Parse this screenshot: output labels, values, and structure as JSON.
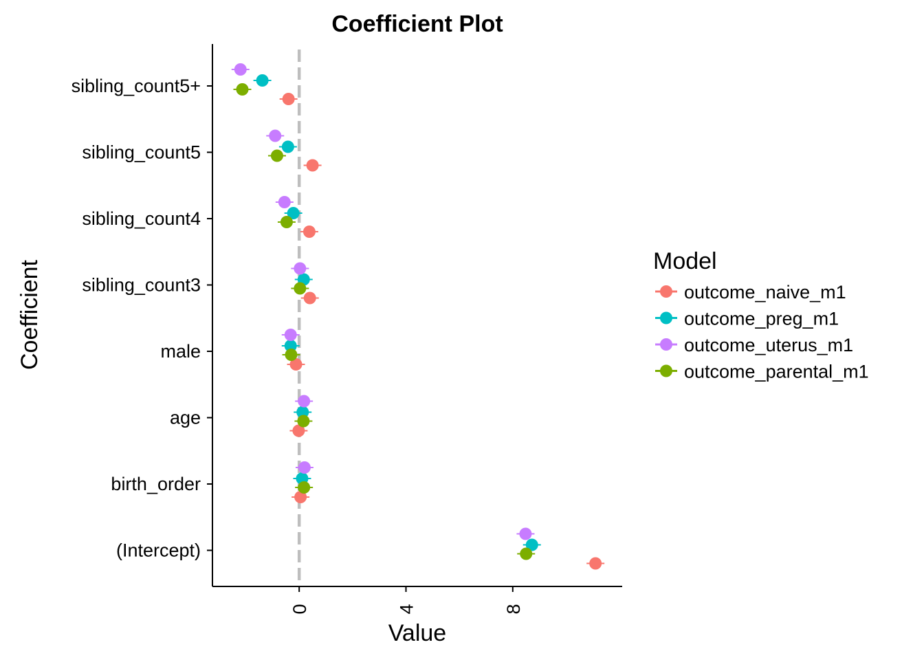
{
  "chart_data": {
    "type": "scatter",
    "title": "Coefficient Plot",
    "xlabel": "Value",
    "ylabel": "Coefficient",
    "xlim": [
      -3.25,
      12.1
    ],
    "x_ticks": [
      0,
      4,
      8
    ],
    "x_tick_labels": [
      "0",
      "4",
      "8"
    ],
    "reference_line": 0,
    "grid": false,
    "legend": {
      "title": "Model",
      "position": "right"
    },
    "categories": [
      "sibling_count5+",
      "sibling_count5",
      "sibling_count4",
      "sibling_count3",
      "male",
      "age",
      "birth_order",
      "(Intercept)"
    ],
    "series": [
      {
        "name": "outcome_naive_m1",
        "color": "#F8766D",
        "values": [
          -0.4,
          0.5,
          0.38,
          0.4,
          -0.12,
          -0.02,
          0.05,
          11.1
        ]
      },
      {
        "name": "outcome_preg_m1",
        "color": "#00BFC4",
        "values": [
          -1.38,
          -0.42,
          -0.22,
          0.17,
          -0.32,
          0.13,
          0.11,
          8.72
        ]
      },
      {
        "name": "outcome_uterus_m1",
        "color": "#C77CFF",
        "values": [
          -2.2,
          -0.9,
          -0.55,
          0.03,
          -0.32,
          0.18,
          0.2,
          8.48
        ]
      },
      {
        "name": "outcome_parental_m1",
        "color": "#7CAE00",
        "values": [
          -2.13,
          -0.83,
          -0.47,
          0.03,
          -0.3,
          0.16,
          0.18,
          8.5
        ]
      }
    ]
  }
}
